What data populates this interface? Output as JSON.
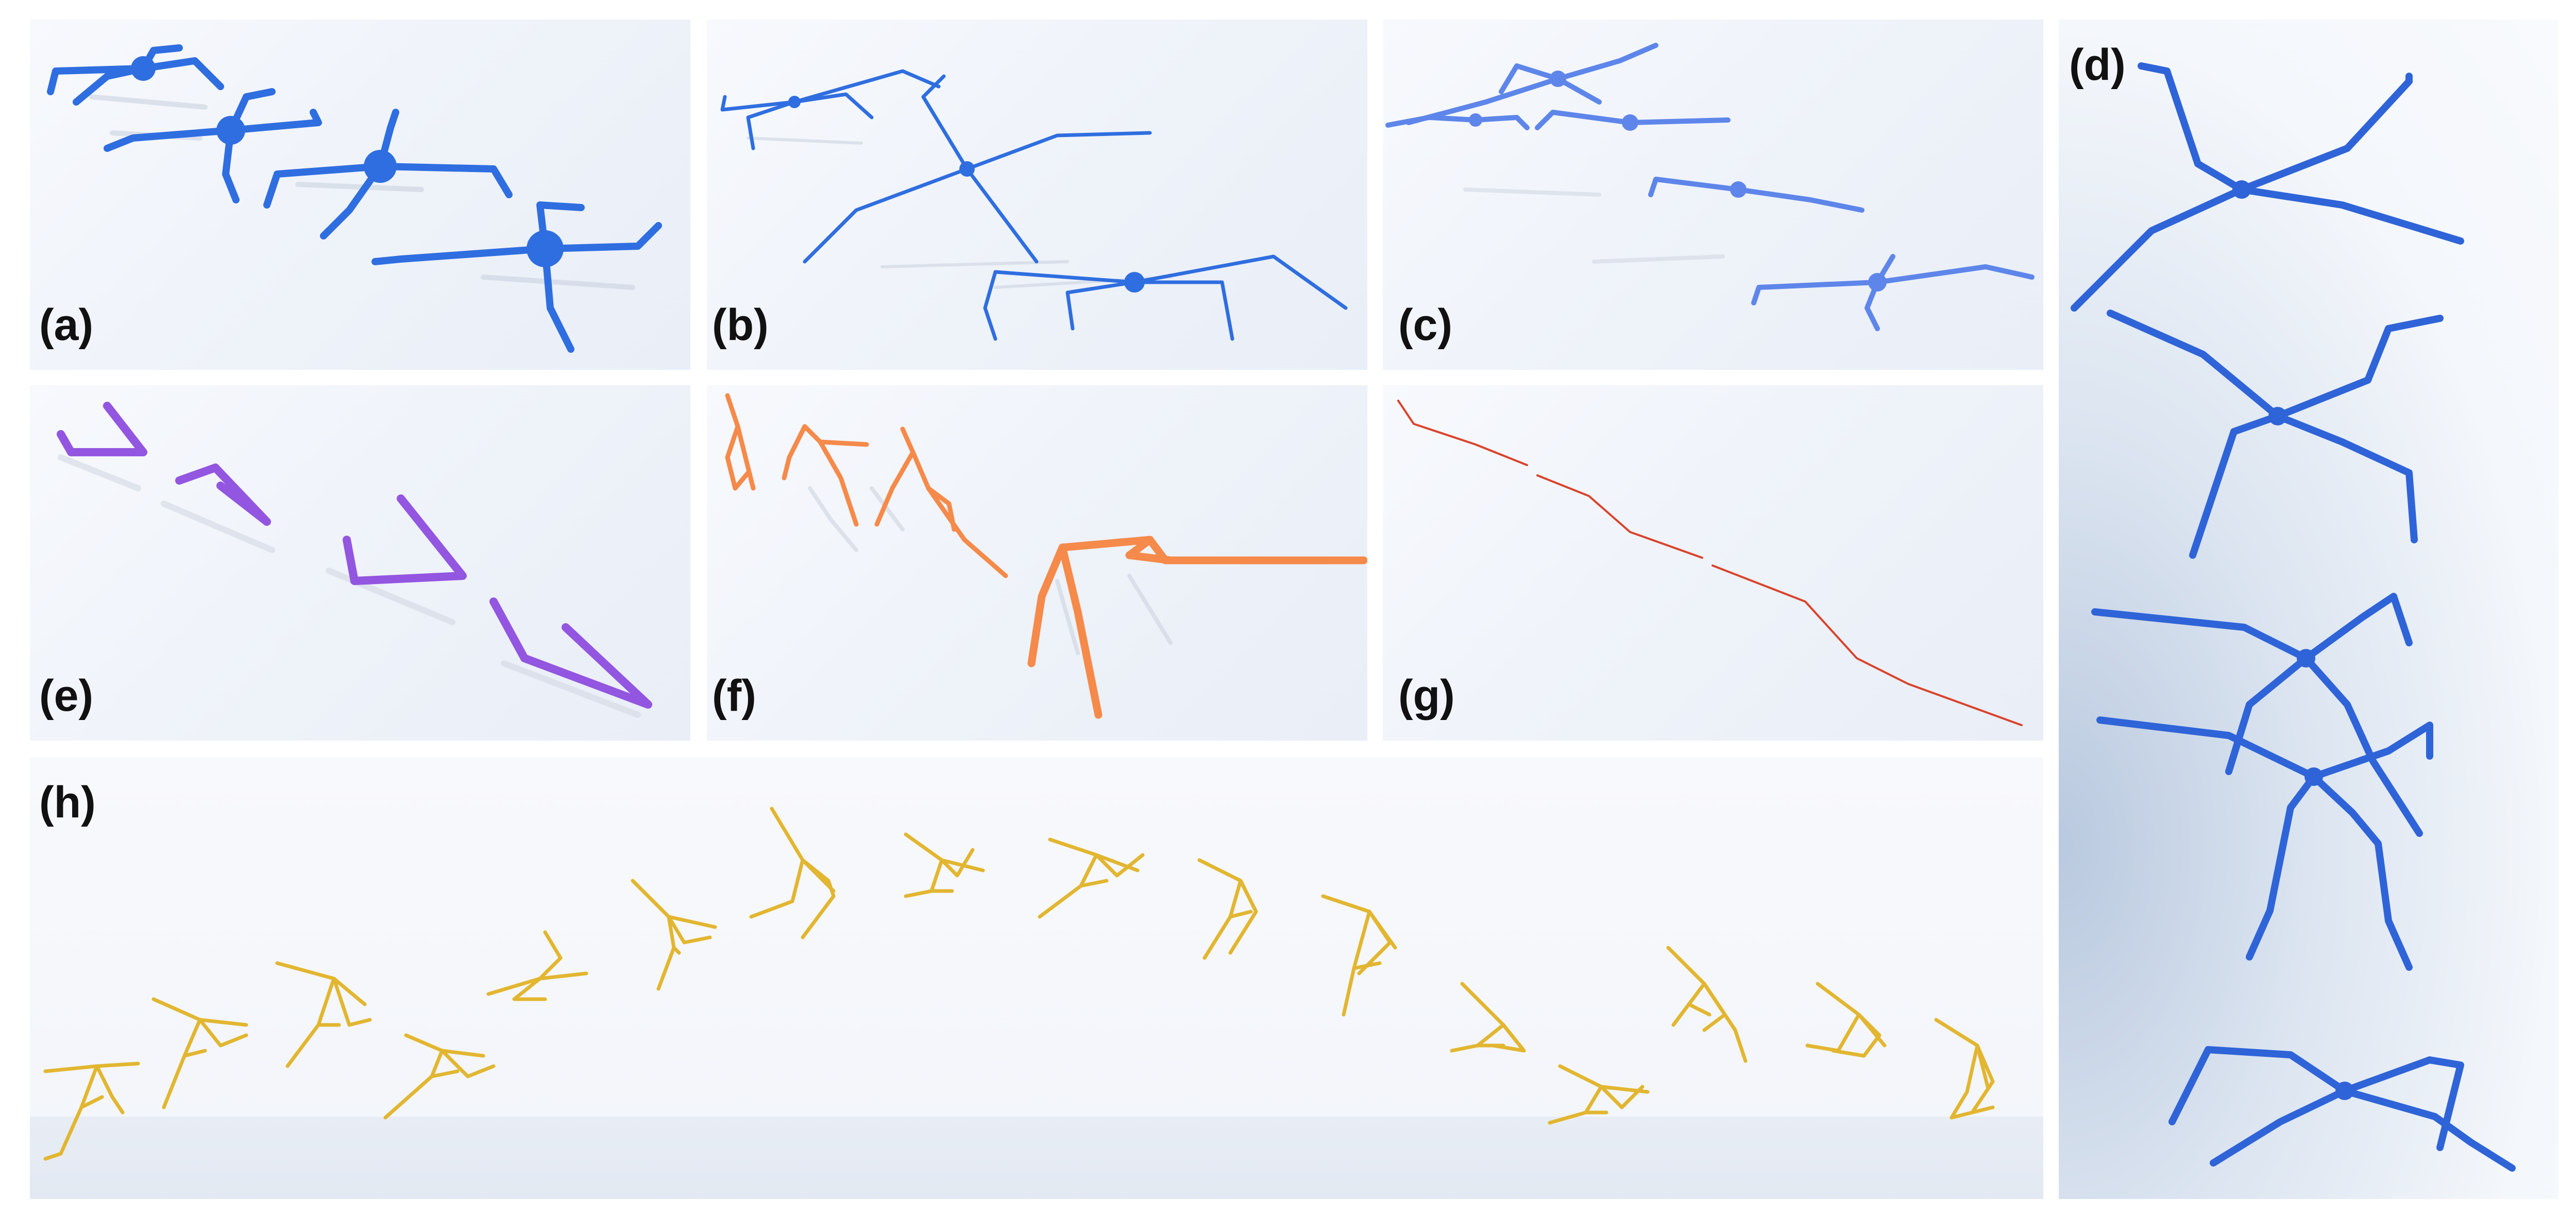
{
  "figure": {
    "panels": [
      {
        "id": "a",
        "label": "(a)",
        "color": "#2f6ee0",
        "creature": "quadruped-spider"
      },
      {
        "id": "b",
        "label": "(b)",
        "color": "#2f6ee0",
        "creature": "long-legged-walker"
      },
      {
        "id": "c",
        "label": "(c)",
        "color": "#5e86ea",
        "creature": "quadruped-spider"
      },
      {
        "id": "d",
        "label": "(d)",
        "color": "#2f64d8",
        "creature": "quadruped-spider-vertical"
      },
      {
        "id": "e",
        "label": "(e)",
        "color": "#9356e0",
        "creature": "hopper"
      },
      {
        "id": "f",
        "label": "(f)",
        "color": "#f58a4a",
        "creature": "cheetah"
      },
      {
        "id": "g",
        "label": "(g)",
        "color": "#d9432c",
        "creature": "swimmer"
      },
      {
        "id": "h",
        "label": "(h)",
        "color": "#e2b630",
        "creature": "humanoid-flip"
      }
    ]
  }
}
